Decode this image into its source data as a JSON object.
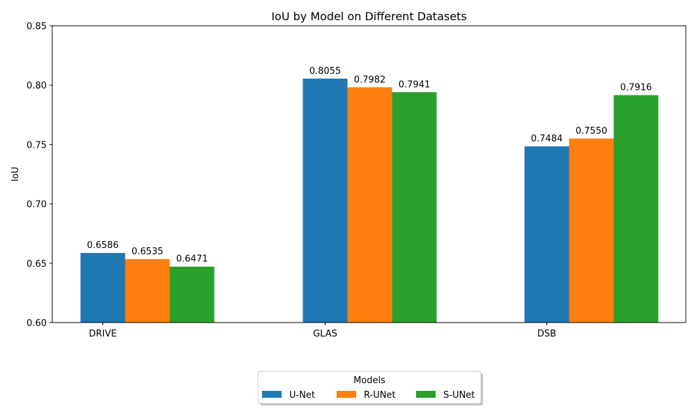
{
  "chart_data": {
    "type": "bar",
    "title": "IoU by Model on Different Datasets",
    "xlabel": "",
    "ylabel": "IoU",
    "ylim": [
      0.6,
      0.85
    ],
    "yticks": [
      "0.60",
      "0.65",
      "0.70",
      "0.75",
      "0.80",
      "0.85"
    ],
    "categories": [
      "DRIVE",
      "GLAS",
      "DSB"
    ],
    "series": [
      {
        "name": "U-Net",
        "color": "#1f77b4",
        "values": [
          0.6586,
          0.8055,
          0.7484
        ],
        "labels": [
          "0.6586",
          "0.8055",
          "0.7484"
        ]
      },
      {
        "name": "R-UNet",
        "color": "#ff7f0e",
        "values": [
          0.6535,
          0.7982,
          0.755
        ],
        "labels": [
          "0.6535",
          "0.7982",
          "0.7550"
        ]
      },
      {
        "name": "S-UNet",
        "color": "#2ca02c",
        "values": [
          0.6471,
          0.7941,
          0.7916
        ],
        "labels": [
          "0.6471",
          "0.7941",
          "0.7916"
        ]
      }
    ],
    "grid": false,
    "legend": {
      "title": "Models",
      "placement": "bottom-center"
    }
  }
}
